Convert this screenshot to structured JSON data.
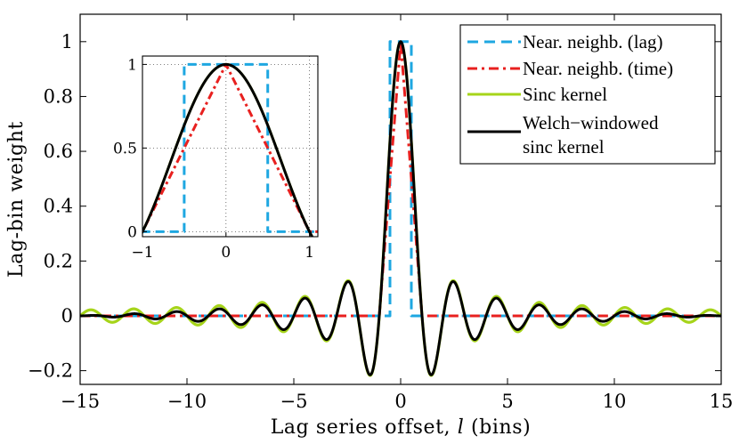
{
  "chart_data": {
    "type": "line",
    "main": {
      "xlabel": "Lag series offset, l (bins)",
      "ylabel": "Lag-bin weight",
      "xlim": [
        -15,
        15
      ],
      "ylim": [
        -0.25,
        1.1
      ],
      "xticks": [
        -15,
        -10,
        -5,
        0,
        5,
        10,
        15
      ],
      "xtick_labels": [
        "−15",
        "−10",
        "−5",
        "0",
        "5",
        "10",
        "15"
      ],
      "yticks": [
        -0.2,
        0,
        0.2,
        0.4,
        0.6,
        0.8,
        1
      ],
      "ytick_labels": [
        "−0.2",
        "0",
        "0.2",
        "0.4",
        "0.6",
        "0.8",
        "1"
      ],
      "grid": false
    },
    "inset": {
      "xlim": [
        -1,
        1.1
      ],
      "ylim": [
        -0.03,
        1.05
      ],
      "xticks": [
        -1,
        0,
        1
      ],
      "xtick_labels": [
        "−1",
        "0",
        "1"
      ],
      "yticks": [
        0,
        0.5,
        1
      ],
      "ytick_labels": [
        "0",
        "0.5",
        "1"
      ],
      "grid": true
    },
    "series": [
      {
        "name": "Near. neighb. (lag)",
        "color": "#1ea7e1",
        "style": "dashed",
        "kernel": "rect",
        "points": [
          [
            -15,
            0
          ],
          [
            -0.5,
            0
          ],
          [
            -0.5,
            1
          ],
          [
            0.5,
            1
          ],
          [
            0.5,
            0
          ],
          [
            15,
            0
          ]
        ]
      },
      {
        "name": "Near. neighb. (time)",
        "color": "#e8201f",
        "style": "dashdot",
        "kernel": "triangle",
        "points": [
          [
            -15,
            0
          ],
          [
            -1,
            0
          ],
          [
            0,
            1
          ],
          [
            1,
            0
          ],
          [
            15,
            0
          ]
        ]
      },
      {
        "name": "Sinc kernel",
        "color": "#a6d41a",
        "style": "solid",
        "kernel": "sinc",
        "formula": "sin(pi*l)/(pi*l)"
      },
      {
        "name": "Welch−windowed sinc kernel",
        "color": "#000000",
        "style": "solid",
        "kernel": "welch-sinc",
        "formula": "sinc(l) * (1 - (l/15)^2)"
      }
    ],
    "legend": {
      "placement": "top-right",
      "entries": [
        {
          "lines": [
            "Near. neighb. (lag)"
          ]
        },
        {
          "lines": [
            "Near. neighb. (time)"
          ]
        },
        {
          "lines": [
            "Sinc kernel"
          ]
        },
        {
          "lines": [
            "Welch−windowed",
            "sinc kernel"
          ]
        }
      ]
    }
  }
}
